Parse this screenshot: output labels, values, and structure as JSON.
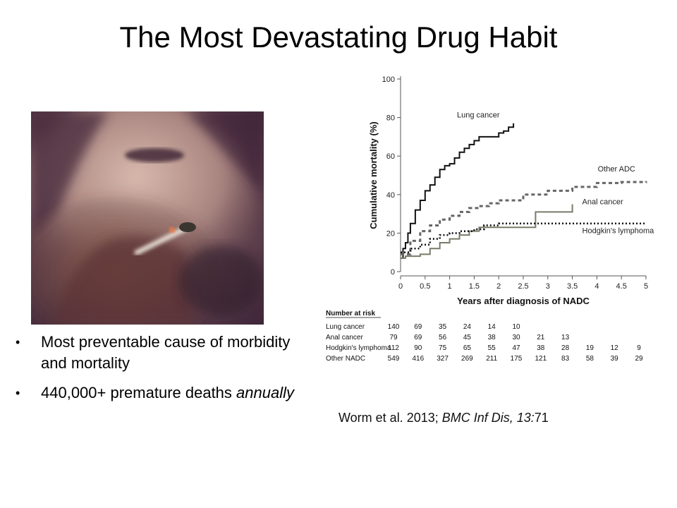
{
  "slide": {
    "title": "The Most Devastating Drug Habit",
    "bullets": [
      {
        "text": "Most preventable cause of morbidity and mortality",
        "emph": ""
      },
      {
        "text": "440,000+ premature deaths ",
        "emph": "annually"
      }
    ],
    "photo_description": "",
    "citation": {
      "authors": "Worm et al. 2013; ",
      "journal": "BMC Inf Dis, 13:",
      "number": "71"
    }
  },
  "chart_data": {
    "type": "line",
    "title": "",
    "xlabel": "Years after diagnosis of NADC",
    "ylabel": "Cumulative mortality (%)",
    "xlim": [
      0,
      5
    ],
    "ylim": [
      0,
      100
    ],
    "x_ticks": [
      "0",
      "0.5",
      "1",
      "1.5",
      "2",
      "2.5",
      "3",
      "3.5",
      "4",
      "4.5",
      "5"
    ],
    "y_ticks": [
      "0",
      "20",
      "40",
      "60",
      "80",
      "100"
    ],
    "series": [
      {
        "name": "Lung cancer",
        "style": "solid",
        "color": "#111111",
        "x": [
          0,
          0.05,
          0.1,
          0.15,
          0.2,
          0.3,
          0.4,
          0.5,
          0.6,
          0.7,
          0.8,
          0.9,
          1.0,
          1.1,
          1.2,
          1.3,
          1.4,
          1.5,
          1.6,
          1.8,
          2.0,
          2.1,
          2.2,
          2.3
        ],
        "y": [
          7,
          12,
          15,
          20,
          25,
          32,
          37,
          42,
          45,
          49,
          53,
          55,
          56,
          59,
          62,
          64,
          66,
          68,
          70,
          70,
          72,
          73,
          75,
          77
        ]
      },
      {
        "name": "Other ADC",
        "style": "dashed",
        "color": "#666666",
        "x": [
          0,
          0.2,
          0.4,
          0.6,
          0.8,
          1.0,
          1.2,
          1.4,
          1.6,
          1.8,
          2.0,
          2.5,
          3.0,
          3.5,
          4.0,
          4.5,
          5.0
        ],
        "y": [
          9,
          16,
          21,
          24,
          27,
          29,
          31,
          33,
          34,
          35.5,
          37,
          40,
          42,
          44,
          46,
          46.5,
          47
        ]
      },
      {
        "name": "Anal cancer",
        "style": "solid",
        "color": "#7a7a6a",
        "x": [
          0,
          0.1,
          0.4,
          0.6,
          0.8,
          1.0,
          1.2,
          1.4,
          1.6,
          2.7,
          2.75,
          3.5,
          3.5
        ],
        "y": [
          7,
          8,
          9,
          12,
          15,
          17,
          19,
          21,
          23,
          23,
          31,
          31,
          35
        ]
      },
      {
        "name": "Hodgkin's lymphoma",
        "style": "dotted",
        "color": "#111111",
        "x": [
          0,
          0.2,
          0.4,
          0.6,
          0.8,
          1.0,
          1.2,
          1.5,
          1.7,
          2.0,
          2.5,
          3.0,
          3.5,
          4.0,
          4.5,
          5.0
        ],
        "y": [
          10,
          12,
          14,
          17,
          19,
          20,
          21,
          22,
          24,
          25,
          25,
          25,
          25,
          25,
          25,
          25
        ]
      }
    ],
    "series_labels": [
      "Lung cancer",
      "Other ADC",
      "Anal cancer",
      "Hodgkin's lymphoma"
    ],
    "risk_table": {
      "header": "Number at risk",
      "rows": [
        {
          "label": "Lung cancer",
          "values": [
            "140",
            "69",
            "35",
            "24",
            "14",
            "10"
          ]
        },
        {
          "label": "Anal cancer",
          "values": [
            "79",
            "69",
            "56",
            "45",
            "38",
            "30",
            "21",
            "13"
          ]
        },
        {
          "label": "Hodgkin's lymphoma",
          "values": [
            "112",
            "90",
            "75",
            "65",
            "55",
            "47",
            "38",
            "28",
            "19",
            "12",
            "9"
          ]
        },
        {
          "label": "Other NADC",
          "values": [
            "549",
            "416",
            "327",
            "269",
            "211",
            "175",
            "121",
            "83",
            "58",
            "39",
            "29"
          ]
        }
      ]
    }
  }
}
